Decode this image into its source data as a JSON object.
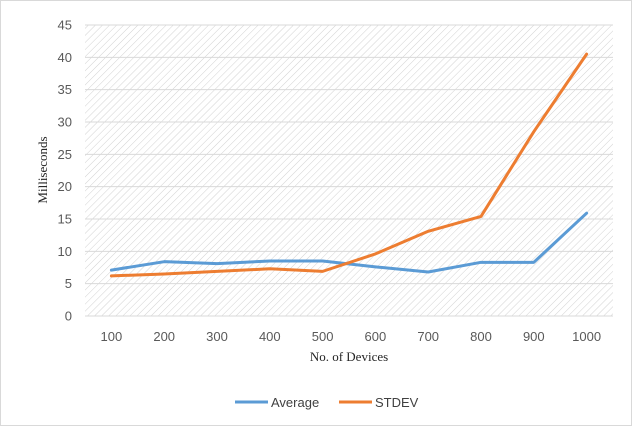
{
  "chart_data": {
    "type": "line",
    "title": "",
    "xlabel": "No. of Devices",
    "ylabel": "Milliseconds",
    "categories": [
      "100",
      "200",
      "300",
      "400",
      "500",
      "600",
      "700",
      "800",
      "900",
      "1000"
    ],
    "ylim": [
      0,
      45
    ],
    "yticks": [
      "0",
      "5",
      "10",
      "15",
      "20",
      "25",
      "30",
      "35",
      "40",
      "45"
    ],
    "grid": true,
    "legend_position": "bottom",
    "series": [
      {
        "name": "Average",
        "color": "#5b9bd5",
        "values": [
          7.1,
          8.4,
          8.1,
          8.5,
          8.5,
          7.6,
          6.8,
          8.3,
          8.3,
          15.9
        ]
      },
      {
        "name": "STDEV",
        "color": "#ed7d31",
        "values": [
          6.2,
          6.5,
          6.9,
          7.3,
          6.9,
          9.6,
          13.1,
          15.4,
          28.5,
          40.5
        ]
      }
    ]
  }
}
